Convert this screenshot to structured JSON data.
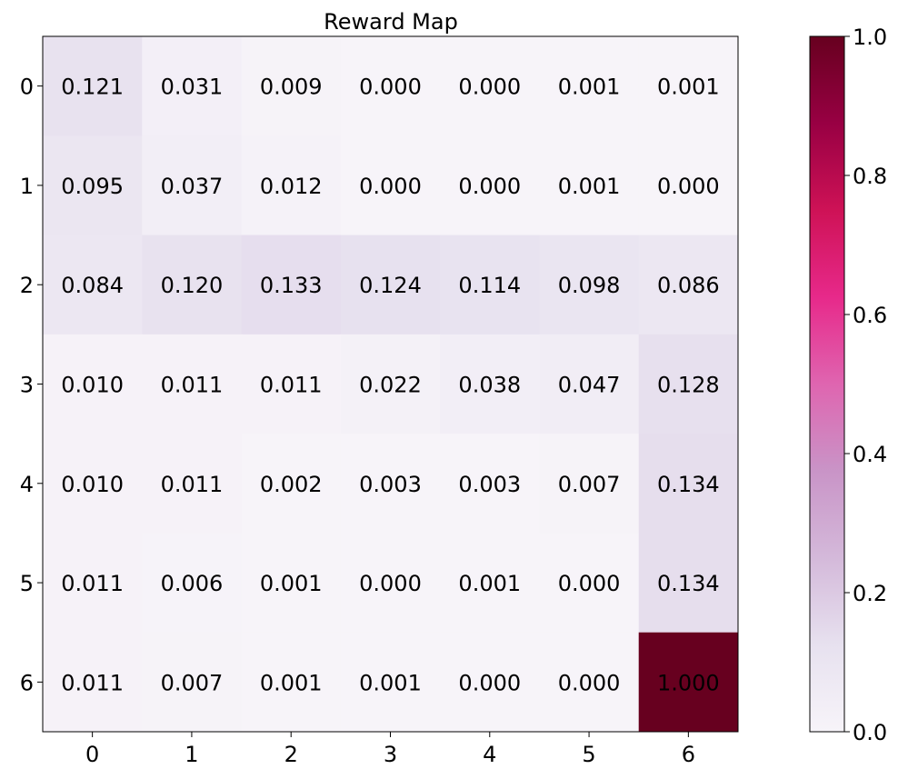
{
  "chart_data": {
    "type": "heatmap",
    "title": "Reward Map",
    "xlabel": "",
    "ylabel": "",
    "x_ticks": [
      "0",
      "1",
      "2",
      "3",
      "4",
      "5",
      "6"
    ],
    "y_ticks": [
      "0",
      "1",
      "2",
      "3",
      "4",
      "5",
      "6"
    ],
    "values": [
      [
        0.121,
        0.031,
        0.009,
        0.0,
        0.0,
        0.001,
        0.001
      ],
      [
        0.095,
        0.037,
        0.012,
        0.0,
        0.0,
        0.001,
        0.0
      ],
      [
        0.084,
        0.12,
        0.133,
        0.124,
        0.114,
        0.098,
        0.086
      ],
      [
        0.01,
        0.011,
        0.011,
        0.022,
        0.038,
        0.047,
        0.128
      ],
      [
        0.01,
        0.011,
        0.002,
        0.003,
        0.003,
        0.007,
        0.134
      ],
      [
        0.011,
        0.006,
        0.001,
        0.0,
        0.001,
        0.0,
        0.134
      ],
      [
        0.011,
        0.007,
        0.001,
        0.001,
        0.0,
        0.0,
        1.0
      ]
    ],
    "cell_labels": [
      [
        "0.121",
        "0.031",
        "0.009",
        "0.000",
        "0.000",
        "0.001",
        "0.001"
      ],
      [
        "0.095",
        "0.037",
        "0.012",
        "0.000",
        "0.000",
        "0.001",
        "0.000"
      ],
      [
        "0.084",
        "0.120",
        "0.133",
        "0.124",
        "0.114",
        "0.098",
        "0.086"
      ],
      [
        "0.010",
        "0.011",
        "0.011",
        "0.022",
        "0.038",
        "0.047",
        "0.128"
      ],
      [
        "0.010",
        "0.011",
        "0.002",
        "0.003",
        "0.003",
        "0.007",
        "0.134"
      ],
      [
        "0.011",
        "0.006",
        "0.001",
        "0.000",
        "0.001",
        "0.000",
        "0.134"
      ],
      [
        "0.011",
        "0.007",
        "0.001",
        "0.001",
        "0.000",
        "0.000",
        "1.000"
      ]
    ],
    "colorbar": {
      "range": [
        0.0,
        1.0
      ],
      "tick_values": [
        0.0,
        0.2,
        0.4,
        0.6,
        0.8,
        1.0
      ],
      "tick_labels": [
        "0.0",
        "0.2",
        "0.4",
        "0.6",
        "0.8",
        "1.0"
      ],
      "colormap": "PuRd",
      "stops": [
        "#f7f4f9",
        "#e7e1ef",
        "#d4b9da",
        "#c994c7",
        "#df65b0",
        "#e7298a",
        "#ce1256",
        "#980043",
        "#67001f"
      ]
    },
    "grid": false,
    "legend": "colorbar-right"
  }
}
